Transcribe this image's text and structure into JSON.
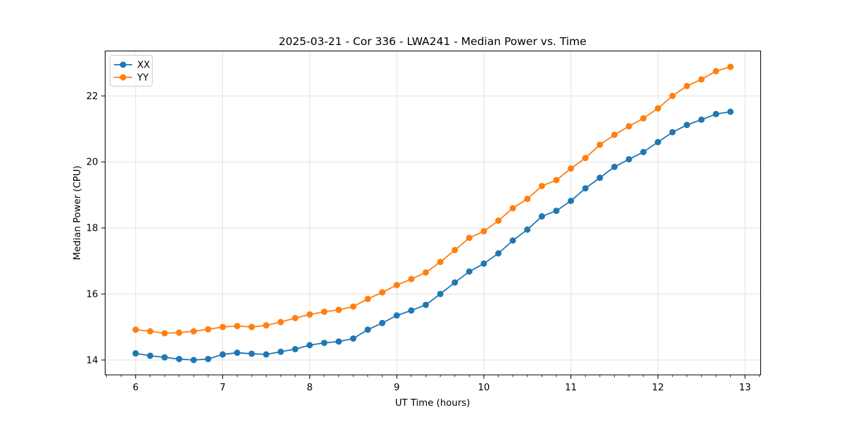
{
  "title": "2025-03-21 - Cor 336 - LWA241 - Median Power vs. Time",
  "axes": {
    "xlabel": "UT Time (hours)",
    "ylabel": "Median Power (CPU)"
  },
  "legend": {
    "position": "upper-left",
    "entries": [
      "XX",
      "YY"
    ]
  },
  "colors": {
    "xx_line": "#1f77b4",
    "yy_line": "#ff7f0e",
    "grid": "#e2e2e2",
    "spine": "#000000",
    "background": "#ffffff"
  },
  "chart_data": {
    "type": "line",
    "title": "2025-03-21 - Cor 336 - LWA241 - Median Power vs. Time",
    "xlabel": "UT Time (hours)",
    "ylabel": "Median Power (CPU)",
    "xlim": [
      5.65,
      13.18
    ],
    "ylim": [
      13.55,
      23.36
    ],
    "xticks": [
      6,
      7,
      8,
      9,
      10,
      11,
      12,
      13
    ],
    "yticks": [
      14,
      16,
      18,
      20,
      22
    ],
    "x_minor_tick_step": 0.1666667,
    "grid": true,
    "legend_position": "upper left",
    "marker": "o",
    "x": [
      6.0,
      6.167,
      6.333,
      6.5,
      6.667,
      6.833,
      7.0,
      7.167,
      7.333,
      7.5,
      7.667,
      7.833,
      8.0,
      8.167,
      8.333,
      8.5,
      8.667,
      8.833,
      9.0,
      9.167,
      9.333,
      9.5,
      9.667,
      9.833,
      10.0,
      10.167,
      10.333,
      10.5,
      10.667,
      10.833,
      11.0,
      11.167,
      11.333,
      11.5,
      11.667,
      11.833,
      12.0,
      12.167,
      12.333,
      12.5,
      12.667,
      12.833
    ],
    "series": [
      {
        "name": "XX",
        "color": "#1f77b4",
        "values": [
          14.2,
          14.13,
          14.08,
          14.03,
          14.0,
          14.03,
          14.17,
          14.22,
          14.19,
          14.17,
          14.25,
          14.33,
          14.45,
          14.52,
          14.56,
          14.65,
          14.92,
          15.12,
          15.35,
          15.5,
          15.67,
          16.0,
          16.35,
          16.68,
          16.92,
          17.23,
          17.62,
          17.95,
          18.35,
          18.52,
          18.82,
          19.2,
          19.52,
          19.85,
          20.08,
          20.3,
          20.6,
          20.9,
          21.12,
          21.28,
          21.45,
          21.52
        ]
      },
      {
        "name": "YY",
        "color": "#ff7f0e",
        "values": [
          14.92,
          14.87,
          14.81,
          14.83,
          14.87,
          14.93,
          15.0,
          15.03,
          15.0,
          15.05,
          15.15,
          15.27,
          15.38,
          15.46,
          15.52,
          15.62,
          15.85,
          16.05,
          16.27,
          16.45,
          16.65,
          16.97,
          17.33,
          17.7,
          17.9,
          18.22,
          18.6,
          18.88,
          19.27,
          19.45,
          19.8,
          20.12,
          20.52,
          20.82,
          21.08,
          21.32,
          21.62,
          22.0,
          22.3,
          22.5,
          22.75,
          22.88
        ]
      }
    ]
  }
}
